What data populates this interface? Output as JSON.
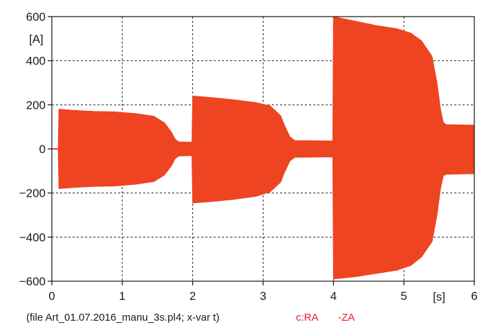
{
  "chart_data": {
    "type": "area",
    "title": "",
    "xlabel": "",
    "ylabel": "",
    "x_unit": "[s]",
    "y_unit": "[A]",
    "xlim": [
      0,
      6
    ],
    "ylim": [
      -600,
      600
    ],
    "x_ticks": [
      "0",
      "1",
      "2",
      "3",
      "4",
      "5",
      "6"
    ],
    "y_ticks": [
      "600",
      "400",
      "200",
      "0",
      "−200",
      "−400",
      "−600"
    ],
    "grid": true,
    "series": [
      {
        "name": "c:RA  -ZA",
        "color": "#ee4422",
        "upper": [
          [
            0.0,
            0
          ],
          [
            0.09,
            0
          ],
          [
            0.1,
            180
          ],
          [
            0.3,
            175
          ],
          [
            0.6,
            170
          ],
          [
            0.9,
            168
          ],
          [
            1.2,
            160
          ],
          [
            1.45,
            148
          ],
          [
            1.6,
            118
          ],
          [
            1.7,
            75
          ],
          [
            1.75,
            45
          ],
          [
            1.8,
            32
          ],
          [
            1.99,
            30
          ],
          [
            2.0,
            240
          ],
          [
            2.3,
            232
          ],
          [
            2.6,
            222
          ],
          [
            2.9,
            210
          ],
          [
            3.1,
            195
          ],
          [
            3.25,
            150
          ],
          [
            3.3,
            110
          ],
          [
            3.38,
            55
          ],
          [
            3.45,
            38
          ],
          [
            3.99,
            36
          ],
          [
            4.0,
            600
          ],
          [
            4.3,
            580
          ],
          [
            4.6,
            560
          ],
          [
            4.9,
            545
          ],
          [
            5.1,
            525
          ],
          [
            5.25,
            490
          ],
          [
            5.4,
            420
          ],
          [
            5.47,
            300
          ],
          [
            5.52,
            180
          ],
          [
            5.56,
            120
          ],
          [
            5.6,
            110
          ],
          [
            6.0,
            108
          ]
        ],
        "lower": [
          [
            0.0,
            0
          ],
          [
            0.09,
            0
          ],
          [
            0.1,
            -180
          ],
          [
            0.3,
            -175
          ],
          [
            0.6,
            -170
          ],
          [
            0.9,
            -168
          ],
          [
            1.2,
            -160
          ],
          [
            1.45,
            -148
          ],
          [
            1.6,
            -118
          ],
          [
            1.7,
            -75
          ],
          [
            1.75,
            -45
          ],
          [
            1.8,
            -32
          ],
          [
            1.99,
            -30
          ],
          [
            2.0,
            -245
          ],
          [
            2.3,
            -238
          ],
          [
            2.6,
            -228
          ],
          [
            2.9,
            -215
          ],
          [
            3.1,
            -195
          ],
          [
            3.25,
            -150
          ],
          [
            3.3,
            -110
          ],
          [
            3.38,
            -55
          ],
          [
            3.45,
            -38
          ],
          [
            3.99,
            -36
          ],
          [
            4.0,
            -590
          ],
          [
            4.3,
            -580
          ],
          [
            4.6,
            -565
          ],
          [
            4.9,
            -550
          ],
          [
            5.1,
            -528
          ],
          [
            5.25,
            -490
          ],
          [
            5.4,
            -420
          ],
          [
            5.47,
            -300
          ],
          [
            5.52,
            -180
          ],
          [
            5.56,
            -122
          ],
          [
            5.6,
            -115
          ],
          [
            6.0,
            -112
          ]
        ]
      }
    ]
  },
  "footer": {
    "file_text": "(file Art_01.07.2016_manu_3s.pl4; x-var t)",
    "series_label": "c:RA",
    "series_label2": "-ZA",
    "series_color": "#e8192c"
  }
}
